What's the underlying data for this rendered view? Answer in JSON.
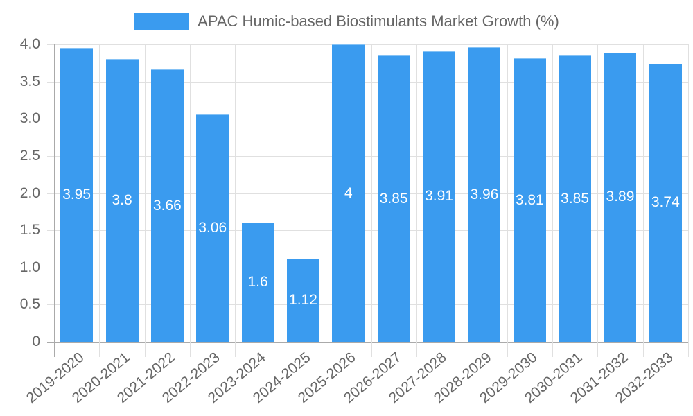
{
  "chart_data": {
    "type": "bar",
    "title": "",
    "legend": [
      {
        "label": "APAC Humic-based Biostimulants Market Growth (%)",
        "color": "#3a9bef"
      }
    ],
    "legend_position": "top",
    "xlabel": "",
    "ylabel": "",
    "ylim": [
      0,
      4.0
    ],
    "yticks": [
      "0",
      "0.5",
      "1.0",
      "1.5",
      "2.0",
      "2.5",
      "3.0",
      "3.5",
      "4.0"
    ],
    "grid": true,
    "categories": [
      "2019-2020",
      "2020-2021",
      "2021-2022",
      "2022-2023",
      "2023-2024",
      "2024-2025",
      "2025-2026",
      "2026-2027",
      "2027-2028",
      "2028-2029",
      "2029-2030",
      "2030-2031",
      "2031-2032",
      "2032-2033"
    ],
    "series": [
      {
        "name": "APAC Humic-based Biostimulants Market Growth (%)",
        "values": [
          3.95,
          3.8,
          3.66,
          3.06,
          1.6,
          1.12,
          4,
          3.85,
          3.91,
          3.96,
          3.81,
          3.85,
          3.89,
          3.74
        ],
        "labels": [
          "3.95",
          "3.8",
          "3.66",
          "3.06",
          "1.6",
          "1.12",
          "4",
          "3.85",
          "3.91",
          "3.96",
          "3.81",
          "3.85",
          "3.89",
          "3.74"
        ]
      }
    ],
    "bar_color": "#3a9bef",
    "data_labels": true
  }
}
